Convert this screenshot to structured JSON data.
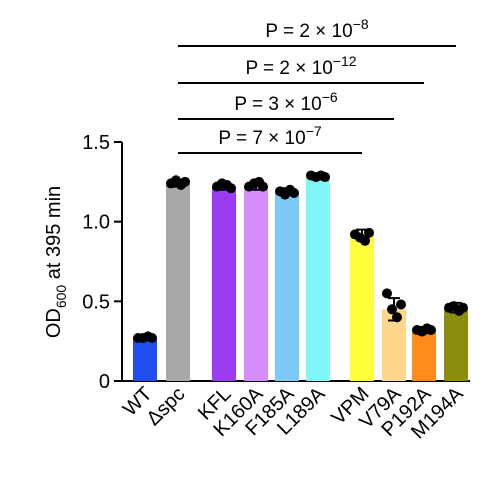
{
  "chart_data": {
    "type": "bar",
    "ylabel": "OD",
    "ylabel_sub": "600",
    "ylabel_rest": " at 395 min",
    "categories": [
      "WT",
      "Δspc",
      "KFL",
      "K160A",
      "F185A",
      "L189A",
      "VPM",
      "V79A",
      "P192A",
      "M194A"
    ],
    "values": [
      0.27,
      1.24,
      1.22,
      1.22,
      1.19,
      1.29,
      0.92,
      0.45,
      0.32,
      0.46
    ],
    "errors": [
      0.01,
      0.02,
      0.02,
      0.02,
      0.02,
      0.01,
      0.03,
      0.07,
      0.02,
      0.03
    ],
    "points": [
      [
        0.27,
        0.27,
        0.28,
        0.27
      ],
      [
        1.24,
        1.26,
        1.23,
        1.25
      ],
      [
        1.22,
        1.24,
        1.23,
        1.21
      ],
      [
        1.22,
        1.24,
        1.25,
        1.22
      ],
      [
        1.19,
        1.17,
        1.2,
        1.18
      ],
      [
        1.29,
        1.28,
        1.29,
        1.28
      ],
      [
        0.92,
        0.9,
        0.88,
        0.93
      ],
      [
        0.55,
        0.45,
        0.4,
        0.48
      ],
      [
        0.32,
        0.31,
        0.33,
        0.32
      ],
      [
        0.46,
        0.47,
        0.44,
        0.46
      ]
    ],
    "colors": [
      "#1f4ff0",
      "#a8a8a8",
      "#9a3df2",
      "#d68cf7",
      "#7dc8f5",
      "#80f7f7",
      "#ffff3c",
      "#ffd68c",
      "#ff8c1a",
      "#8c8c0f"
    ],
    "ylim": [
      0,
      1.5
    ],
    "yticks": [
      0,
      {
        "value": 0.5,
        "label": "0.5"
      },
      {
        "value": 1,
        "label": "1.0"
      },
      1.5
    ],
    "annotations": [
      {
        "from": "Δspc",
        "to": "M194A",
        "text": "P = 2 × 10",
        "exponent": "−8"
      },
      {
        "from": "Δspc",
        "to": "P192A",
        "text": "P = 2 × 10",
        "exponent": "−12"
      },
      {
        "from": "Δspc",
        "to": "V79A",
        "text": "P = 3 × 10",
        "exponent": "−6"
      },
      {
        "from": "Δspc",
        "to": "VPM",
        "text": "P = 7 × 10",
        "exponent": "−7"
      }
    ]
  }
}
